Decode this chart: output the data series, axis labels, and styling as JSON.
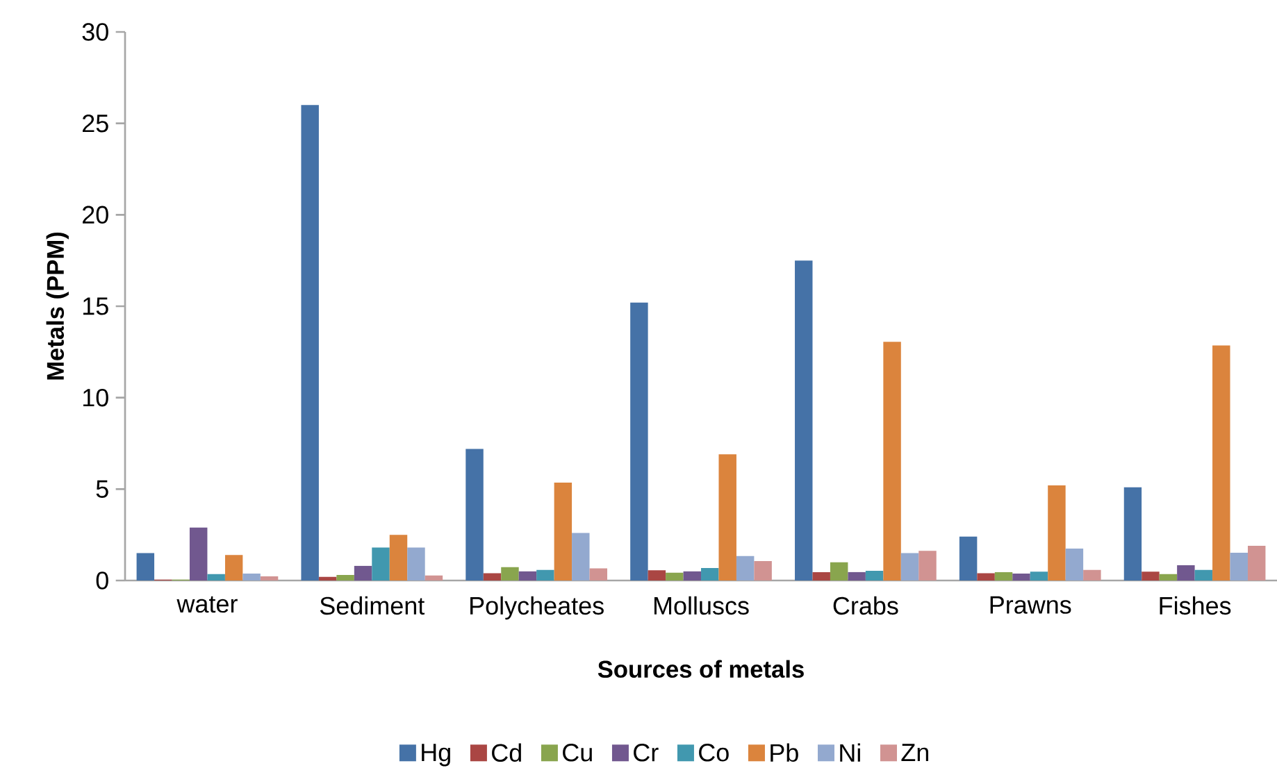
{
  "chart_data": {
    "type": "bar",
    "xlabel": "Sources of metals",
    "ylabel": "Metals (PPM)",
    "categories": [
      "water",
      "Sediment",
      "Polycheates",
      "Molluscs",
      "Crabs",
      "Prawns",
      "Fishes"
    ],
    "series": [
      {
        "name": "Hg",
        "color": "#4572a7",
        "values": [
          1.5,
          26,
          7.2,
          15.2,
          17.5,
          2.4,
          5.1
        ]
      },
      {
        "name": "Cd",
        "color": "#aa4643",
        "values": [
          0.05,
          0.2,
          0.4,
          0.56,
          0.46,
          0.4,
          0.48
        ]
      },
      {
        "name": "Cu",
        "color": "#89a54e",
        "values": [
          0.05,
          0.3,
          0.73,
          0.43,
          1.0,
          0.46,
          0.35
        ]
      },
      {
        "name": "Cr",
        "color": "#71588f",
        "values": [
          2.9,
          0.8,
          0.5,
          0.5,
          0.46,
          0.38,
          0.84
        ]
      },
      {
        "name": "Co",
        "color": "#4198af",
        "values": [
          0.35,
          1.8,
          0.58,
          0.68,
          0.53,
          0.48,
          0.58
        ]
      },
      {
        "name": "Pb",
        "color": "#db843d",
        "values": [
          1.4,
          2.5,
          5.35,
          6.9,
          13.05,
          5.2,
          12.85
        ]
      },
      {
        "name": "Ni",
        "color": "#93a9cf",
        "values": [
          0.38,
          1.8,
          2.6,
          1.34,
          1.5,
          1.75,
          1.52
        ]
      },
      {
        "name": "Zn",
        "color": "#d19392",
        "values": [
          0.23,
          0.28,
          0.66,
          1.06,
          1.62,
          0.58,
          1.9
        ]
      }
    ],
    "ylim": [
      0,
      30
    ],
    "yticks": [
      0,
      5,
      10,
      15,
      20,
      25,
      30
    ],
    "legend": "bottom"
  }
}
